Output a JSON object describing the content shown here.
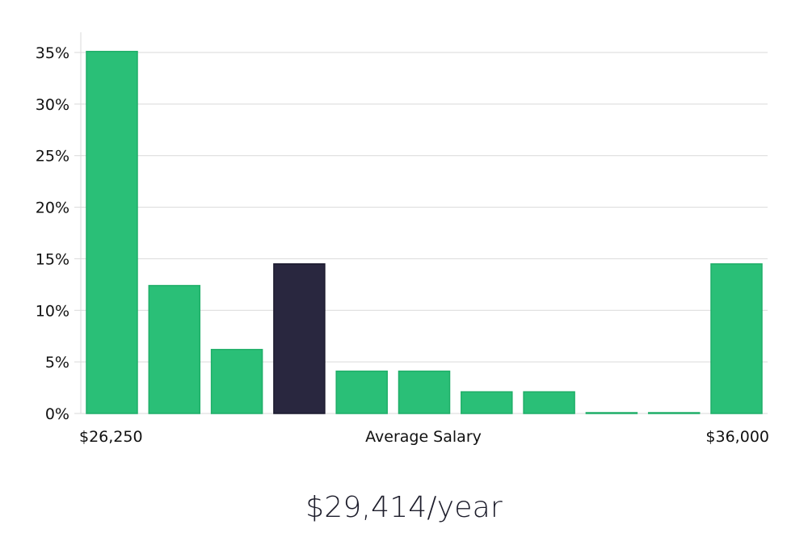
{
  "chart_data": {
    "type": "bar",
    "title": "",
    "xlabel": "Average Salary",
    "ylabel": "",
    "x_start_label": "$26,250",
    "x_end_label": "$36,000",
    "ylim": [
      0,
      35
    ],
    "yticks": [
      "0%",
      "5%",
      "10%",
      "15%",
      "20%",
      "25%",
      "30%",
      "35%"
    ],
    "ytick_values": [
      0,
      5,
      10,
      15,
      20,
      25,
      30,
      35
    ],
    "values": [
      35.1,
      12.4,
      6.2,
      14.5,
      4.1,
      4.1,
      2.1,
      2.1,
      0,
      0,
      14.5
    ],
    "highlight_index": 3,
    "colors": {
      "bar": "#2abf77",
      "bar_edge": "#1fae68",
      "highlight": "#29273f",
      "grid": "#d9d9d9",
      "axis_text": "#111111"
    },
    "grid": true
  },
  "headline": "$29,414/year"
}
